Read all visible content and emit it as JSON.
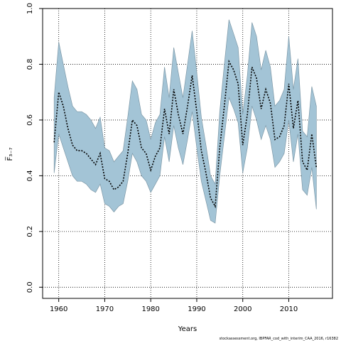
{
  "chart_data": {
    "type": "area",
    "title": "",
    "xlabel": "Years",
    "ylabel": "F̅₃₋₇",
    "credit": "stockassessment.org, IBPFAR_cod_with_interim_CAA_2016, r16382",
    "xlim": [
      1956.5,
      2019.5
    ],
    "ylim": [
      -0.04,
      1.0
    ],
    "xticks": [
      1960,
      1970,
      1980,
      1990,
      2000,
      2010
    ],
    "xtick_labels": [
      "1960",
      "1970",
      "1980",
      "1990",
      "2000",
      "2010"
    ],
    "yticks": [
      0.0,
      0.2,
      0.4,
      0.6,
      0.8,
      1.0
    ],
    "ytick_labels": [
      "0.0",
      "0.2",
      "0.4",
      "0.6",
      "0.8",
      "1.0"
    ],
    "grid": true,
    "colors": {
      "band": "#a3c4d6",
      "band_edge": "#7d98a7",
      "line": "#000000",
      "grid": "#000000",
      "axes": "#000000"
    },
    "x": [
      1959,
      1960,
      1961,
      1962,
      1963,
      1964,
      1965,
      1966,
      1967,
      1968,
      1969,
      1970,
      1971,
      1972,
      1973,
      1974,
      1975,
      1976,
      1977,
      1978,
      1979,
      1980,
      1981,
      1982,
      1983,
      1984,
      1985,
      1986,
      1987,
      1988,
      1989,
      1990,
      1991,
      1992,
      1993,
      1994,
      1995,
      1996,
      1997,
      1998,
      1999,
      2000,
      2001,
      2002,
      2003,
      2004,
      2005,
      2006,
      2007,
      2008,
      2009,
      2010,
      2011,
      2012,
      2013,
      2014,
      2015,
      2016
    ],
    "series": [
      {
        "name": "",
        "values": [
          0.52,
          0.7,
          0.65,
          0.57,
          0.51,
          0.49,
          0.49,
          0.48,
          0.46,
          0.44,
          0.48,
          0.39,
          0.38,
          0.35,
          0.36,
          0.38,
          0.48,
          0.6,
          0.58,
          0.5,
          0.48,
          0.42,
          0.47,
          0.5,
          0.64,
          0.55,
          0.71,
          0.62,
          0.55,
          0.65,
          0.76,
          0.63,
          0.49,
          0.41,
          0.32,
          0.29,
          0.5,
          0.65,
          0.81,
          0.78,
          0.73,
          0.51,
          0.62,
          0.79,
          0.75,
          0.64,
          0.71,
          0.66,
          0.53,
          0.54,
          0.58,
          0.73,
          0.57,
          0.67,
          0.45,
          0.42,
          0.55,
          0.43
        ],
        "lower": [
          0.41,
          0.55,
          0.5,
          0.45,
          0.4,
          0.38,
          0.38,
          0.37,
          0.35,
          0.34,
          0.37,
          0.3,
          0.29,
          0.27,
          0.29,
          0.3,
          0.38,
          0.48,
          0.45,
          0.4,
          0.38,
          0.34,
          0.37,
          0.4,
          0.54,
          0.45,
          0.58,
          0.5,
          0.44,
          0.53,
          0.63,
          0.5,
          0.38,
          0.31,
          0.24,
          0.23,
          0.4,
          0.54,
          0.68,
          0.64,
          0.59,
          0.41,
          0.5,
          0.65,
          0.6,
          0.53,
          0.58,
          0.53,
          0.43,
          0.45,
          0.48,
          0.6,
          0.45,
          0.55,
          0.35,
          0.33,
          0.43,
          0.28
        ],
        "upper": [
          0.68,
          0.88,
          0.8,
          0.72,
          0.65,
          0.63,
          0.63,
          0.62,
          0.6,
          0.57,
          0.61,
          0.5,
          0.49,
          0.45,
          0.47,
          0.49,
          0.61,
          0.74,
          0.71,
          0.62,
          0.6,
          0.53,
          0.59,
          0.62,
          0.79,
          0.68,
          0.86,
          0.77,
          0.68,
          0.8,
          0.92,
          0.77,
          0.61,
          0.51,
          0.4,
          0.37,
          0.63,
          0.8,
          0.96,
          0.91,
          0.86,
          0.62,
          0.76,
          0.95,
          0.9,
          0.78,
          0.85,
          0.79,
          0.65,
          0.67,
          0.71,
          0.9,
          0.71,
          0.82,
          0.56,
          0.54,
          0.72,
          0.65
        ]
      }
    ]
  }
}
